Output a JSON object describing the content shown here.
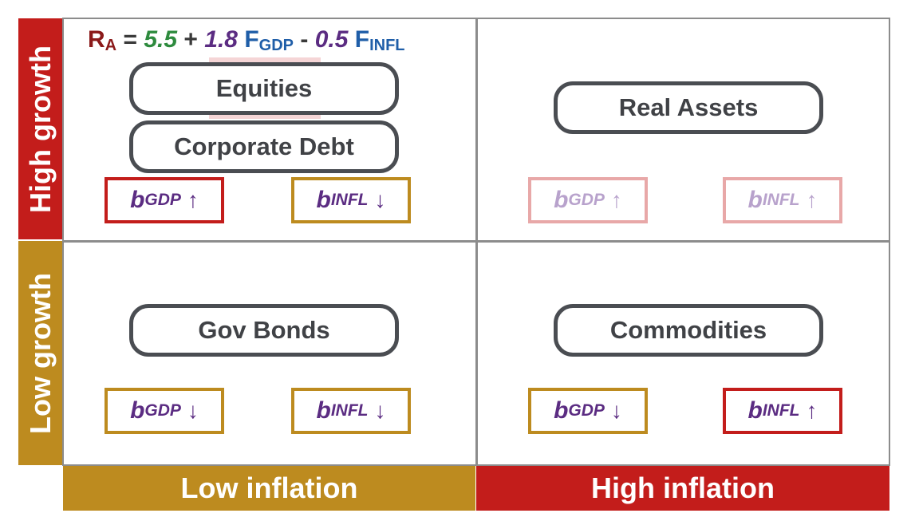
{
  "axes": {
    "high_growth": "High growth",
    "low_growth": "Low growth",
    "low_inflation": "Low inflation",
    "high_inflation": "High inflation"
  },
  "formula": {
    "r": "R",
    "r_sub": "A",
    "eq": "=",
    "c0": "5.5",
    "plus": "+",
    "c1": "1.8",
    "f1": "F",
    "f1_sub": "GDP",
    "minus": "-",
    "c2": "0.5",
    "f2": "F",
    "f2_sub": "INFL"
  },
  "assets": {
    "equities": "Equities",
    "corporate_debt": "Corporate Debt",
    "real_assets": "Real Assets",
    "gov_bonds": "Gov Bonds",
    "commodities": "Commodities"
  },
  "betas": {
    "b": "b",
    "gdp": "GDP",
    "infl": "INFL",
    "up": "↑",
    "down": "↓"
  },
  "colors": {
    "red": "#c31d1b",
    "gold": "#bd8b1f",
    "purple": "#5b2c82",
    "green": "#2e8b3e",
    "blue": "#1f5ea8",
    "faint_red": "#e8a8a8"
  }
}
